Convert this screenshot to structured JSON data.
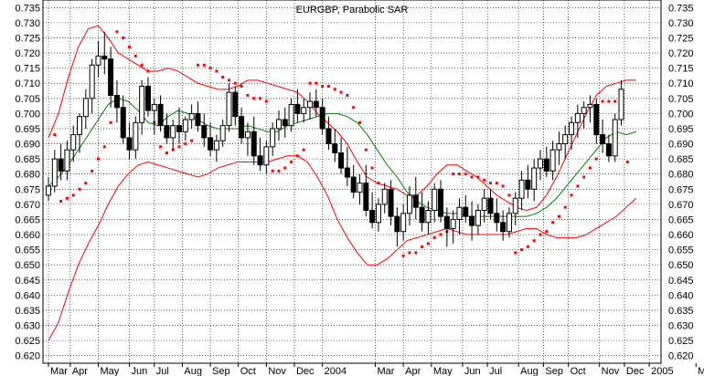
{
  "chart_data": {
    "type": "candlestick",
    "title": "EURGBP, Parabolic SAR",
    "ylim": [
      0.6175,
      0.7375
    ],
    "y_ticks": [
      "0.735",
      "0.730",
      "0.725",
      "0.720",
      "0.715",
      "0.710",
      "0.705",
      "0.700",
      "0.695",
      "0.690",
      "0.685",
      "0.680",
      "0.675",
      "0.670",
      "0.665",
      "0.660",
      "0.655",
      "0.650",
      "0.645",
      "0.640",
      "0.635",
      "0.630",
      "0.625",
      "0.620"
    ],
    "x_ticks": [
      "Mar",
      "Apr",
      "May",
      "Jun",
      "Jul",
      "Aug",
      "Sep",
      "Oct",
      "Nov",
      "Dec",
      "2004",
      "Mar",
      "Apr",
      "May",
      "Jun",
      "Jul",
      "Aug",
      "Sep",
      "Oct",
      "Nov",
      "Dec",
      "2005",
      "Mar"
    ],
    "x_tick_weeks": [
      0,
      3.5,
      8,
      13,
      17,
      21.5,
      26,
      30.5,
      35,
      39.5,
      44,
      52.5,
      57,
      61.5,
      66.5,
      70.5,
      75.5,
      79.5,
      83.5,
      88.5,
      92.5,
      96.5,
      104
    ],
    "grid": true,
    "colors": {
      "up_candle": "#ffffff",
      "down_candle": "#000000",
      "bollinger": "#ff0000",
      "moving_average": "#008000",
      "sar": "#ff0000",
      "grid": "#000000"
    },
    "candles": [
      [
        0.673,
        0.679,
        0.671,
        0.676
      ],
      [
        0.676,
        0.688,
        0.674,
        0.685
      ],
      [
        0.685,
        0.69,
        0.678,
        0.681
      ],
      [
        0.681,
        0.691,
        0.678,
        0.688
      ],
      [
        0.688,
        0.696,
        0.684,
        0.693
      ],
      [
        0.693,
        0.7,
        0.687,
        0.699
      ],
      [
        0.699,
        0.708,
        0.695,
        0.705
      ],
      [
        0.705,
        0.718,
        0.7,
        0.716
      ],
      [
        0.716,
        0.724,
        0.712,
        0.719
      ],
      [
        0.719,
        0.727,
        0.713,
        0.718
      ],
      [
        0.718,
        0.722,
        0.702,
        0.706
      ],
      [
        0.706,
        0.711,
        0.697,
        0.702
      ],
      [
        0.702,
        0.706,
        0.69,
        0.692
      ],
      [
        0.692,
        0.697,
        0.685,
        0.688
      ],
      [
        0.688,
        0.699,
        0.685,
        0.697
      ],
      [
        0.697,
        0.711,
        0.693,
        0.709
      ],
      [
        0.709,
        0.712,
        0.699,
        0.701
      ],
      [
        0.701,
        0.705,
        0.693,
        0.703
      ],
      [
        0.703,
        0.706,
        0.694,
        0.696
      ],
      [
        0.696,
        0.7,
        0.69,
        0.692
      ],
      [
        0.692,
        0.698,
        0.688,
        0.696
      ],
      [
        0.696,
        0.702,
        0.69,
        0.694
      ],
      [
        0.694,
        0.699,
        0.691,
        0.698
      ],
      [
        0.698,
        0.703,
        0.695,
        0.7
      ],
      [
        0.7,
        0.704,
        0.694,
        0.696
      ],
      [
        0.696,
        0.7,
        0.689,
        0.692
      ],
      [
        0.692,
        0.697,
        0.686,
        0.688
      ],
      [
        0.688,
        0.693,
        0.684,
        0.691
      ],
      [
        0.691,
        0.698,
        0.689,
        0.696
      ],
      [
        0.696,
        0.71,
        0.694,
        0.707
      ],
      [
        0.707,
        0.709,
        0.696,
        0.699
      ],
      [
        0.699,
        0.702,
        0.69,
        0.692
      ],
      [
        0.692,
        0.697,
        0.686,
        0.694
      ],
      [
        0.694,
        0.699,
        0.683,
        0.686
      ],
      [
        0.686,
        0.692,
        0.681,
        0.683
      ],
      [
        0.683,
        0.691,
        0.68,
        0.689
      ],
      [
        0.689,
        0.697,
        0.686,
        0.695
      ],
      [
        0.695,
        0.701,
        0.691,
        0.698
      ],
      [
        0.698,
        0.702,
        0.692,
        0.696
      ],
      [
        0.696,
        0.705,
        0.694,
        0.703
      ],
      [
        0.703,
        0.708,
        0.697,
        0.7
      ],
      [
        0.7,
        0.705,
        0.697,
        0.702
      ],
      [
        0.702,
        0.707,
        0.698,
        0.704
      ],
      [
        0.704,
        0.708,
        0.699,
        0.702
      ],
      [
        0.702,
        0.705,
        0.693,
        0.695
      ],
      [
        0.695,
        0.699,
        0.688,
        0.69
      ],
      [
        0.69,
        0.695,
        0.684,
        0.687
      ],
      [
        0.687,
        0.692,
        0.68,
        0.682
      ],
      [
        0.682,
        0.689,
        0.676,
        0.679
      ],
      [
        0.679,
        0.683,
        0.672,
        0.674
      ],
      [
        0.674,
        0.68,
        0.67,
        0.677
      ],
      [
        0.677,
        0.683,
        0.666,
        0.668
      ],
      [
        0.668,
        0.674,
        0.662,
        0.664
      ],
      [
        0.664,
        0.672,
        0.661,
        0.67
      ],
      [
        0.67,
        0.677,
        0.667,
        0.675
      ],
      [
        0.675,
        0.678,
        0.663,
        0.666
      ],
      [
        0.666,
        0.669,
        0.656,
        0.661
      ],
      [
        0.661,
        0.67,
        0.658,
        0.667
      ],
      [
        0.667,
        0.676,
        0.663,
        0.673
      ],
      [
        0.673,
        0.679,
        0.665,
        0.669
      ],
      [
        0.669,
        0.674,
        0.661,
        0.664
      ],
      [
        0.664,
        0.671,
        0.66,
        0.668
      ],
      [
        0.668,
        0.677,
        0.664,
        0.675
      ],
      [
        0.675,
        0.678,
        0.664,
        0.666
      ],
      [
        0.666,
        0.669,
        0.656,
        0.662
      ],
      [
        0.662,
        0.668,
        0.657,
        0.665
      ],
      [
        0.665,
        0.672,
        0.66,
        0.669
      ],
      [
        0.669,
        0.673,
        0.664,
        0.666
      ],
      [
        0.666,
        0.671,
        0.658,
        0.663
      ],
      [
        0.663,
        0.67,
        0.66,
        0.668
      ],
      [
        0.668,
        0.675,
        0.664,
        0.672
      ],
      [
        0.672,
        0.675,
        0.665,
        0.667
      ],
      [
        0.667,
        0.672,
        0.661,
        0.664
      ],
      [
        0.664,
        0.668,
        0.658,
        0.661
      ],
      [
        0.661,
        0.669,
        0.659,
        0.667
      ],
      [
        0.667,
        0.674,
        0.663,
        0.672
      ],
      [
        0.672,
        0.681,
        0.668,
        0.678
      ],
      [
        0.678,
        0.683,
        0.672,
        0.675
      ],
      [
        0.675,
        0.685,
        0.671,
        0.682
      ],
      [
        0.682,
        0.688,
        0.678,
        0.685
      ],
      [
        0.685,
        0.689,
        0.679,
        0.681
      ],
      [
        0.681,
        0.691,
        0.678,
        0.688
      ],
      [
        0.688,
        0.694,
        0.683,
        0.69
      ],
      [
        0.69,
        0.696,
        0.685,
        0.693
      ],
      [
        0.693,
        0.699,
        0.688,
        0.697
      ],
      [
        0.697,
        0.703,
        0.692,
        0.7
      ],
      [
        0.7,
        0.704,
        0.695,
        0.702
      ],
      [
        0.702,
        0.706,
        0.697,
        0.703
      ],
      [
        0.703,
        0.705,
        0.69,
        0.693
      ],
      [
        0.693,
        0.698,
        0.687,
        0.69
      ],
      [
        0.69,
        0.693,
        0.684,
        0.686
      ],
      [
        0.686,
        0.7,
        0.684,
        0.698
      ],
      [
        0.698,
        0.711,
        0.696,
        0.708
      ]
    ],
    "ma": [
      0.676,
      0.679,
      0.683,
      0.688,
      0.693,
      0.698,
      0.703,
      0.705,
      0.704,
      0.701,
      0.697,
      0.696,
      0.699,
      0.701,
      0.7,
      0.698,
      0.696,
      0.695,
      0.695,
      0.695,
      0.696,
      0.695,
      0.694,
      0.694,
      0.696,
      0.697,
      0.698,
      0.699,
      0.7,
      0.7,
      0.699,
      0.697,
      0.693,
      0.688,
      0.683,
      0.679,
      0.674,
      0.671,
      0.669,
      0.668,
      0.667,
      0.667,
      0.666,
      0.666,
      0.666,
      0.666,
      0.666,
      0.666,
      0.666,
      0.667,
      0.669,
      0.672,
      0.676,
      0.68,
      0.684,
      0.688,
      0.692,
      0.694,
      0.693,
      0.694
    ],
    "bb_upper": [
      0.692,
      0.7,
      0.712,
      0.722,
      0.728,
      0.729,
      0.725,
      0.72,
      0.718,
      0.716,
      0.714,
      0.714,
      0.715,
      0.714,
      0.712,
      0.71,
      0.709,
      0.708,
      0.708,
      0.709,
      0.711,
      0.711,
      0.71,
      0.709,
      0.708,
      0.707,
      0.704,
      0.7,
      0.697,
      0.694,
      0.69,
      0.684,
      0.679,
      0.677,
      0.676,
      0.675,
      0.673,
      0.673,
      0.676,
      0.68,
      0.683,
      0.683,
      0.681,
      0.679,
      0.676,
      0.673,
      0.671,
      0.669,
      0.668,
      0.669,
      0.673,
      0.679,
      0.686,
      0.693,
      0.7,
      0.706,
      0.709,
      0.71,
      0.711,
      0.711
    ],
    "bb_lower": [
      0.625,
      0.631,
      0.641,
      0.65,
      0.657,
      0.663,
      0.67,
      0.676,
      0.68,
      0.683,
      0.684,
      0.683,
      0.682,
      0.681,
      0.68,
      0.679,
      0.68,
      0.682,
      0.683,
      0.684,
      0.684,
      0.684,
      0.684,
      0.685,
      0.686,
      0.686,
      0.684,
      0.679,
      0.673,
      0.665,
      0.659,
      0.654,
      0.65,
      0.65,
      0.652,
      0.655,
      0.658,
      0.659,
      0.66,
      0.661,
      0.662,
      0.661,
      0.66,
      0.66,
      0.66,
      0.66,
      0.66,
      0.661,
      0.662,
      0.662,
      0.66,
      0.659,
      0.659,
      0.659,
      0.66,
      0.662,
      0.664,
      0.666,
      0.669,
      0.672
    ],
    "sar": [
      [
        1,
        0.693
      ],
      [
        2,
        0.671
      ],
      [
        3,
        0.672
      ],
      [
        4,
        0.673
      ],
      [
        5,
        0.675
      ],
      [
        6,
        0.677
      ],
      [
        7,
        0.681
      ],
      [
        8,
        0.685
      ],
      [
        9,
        0.689
      ],
      [
        10,
        0.697
      ],
      [
        11,
        0.727
      ],
      [
        12,
        0.725
      ],
      [
        13,
        0.722
      ],
      [
        14,
        0.719
      ],
      [
        15,
        0.716
      ],
      [
        16,
        0.714
      ],
      [
        17,
        0.697
      ],
      [
        18,
        0.689
      ],
      [
        19,
        0.687
      ],
      [
        20,
        0.688
      ],
      [
        21,
        0.689
      ],
      [
        22,
        0.69
      ],
      [
        23,
        0.691
      ],
      [
        24,
        0.716
      ],
      [
        25,
        0.716
      ],
      [
        26,
        0.715
      ],
      [
        27,
        0.714
      ],
      [
        28,
        0.712
      ],
      [
        29,
        0.711
      ],
      [
        30,
        0.71
      ],
      [
        31,
        0.709
      ],
      [
        32,
        0.706
      ],
      [
        33,
        0.705
      ],
      [
        34,
        0.705
      ],
      [
        35,
        0.704
      ],
      [
        36,
        0.681
      ],
      [
        37,
        0.681
      ],
      [
        38,
        0.682
      ],
      [
        39,
        0.684
      ],
      [
        40,
        0.686
      ],
      [
        41,
        0.688
      ],
      [
        42,
        0.71
      ],
      [
        43,
        0.71
      ],
      [
        44,
        0.709
      ],
      [
        45,
        0.709
      ],
      [
        46,
        0.708
      ],
      [
        47,
        0.707
      ],
      [
        48,
        0.706
      ],
      [
        49,
        0.702
      ],
      [
        50,
        0.697
      ],
      [
        51,
        0.688
      ],
      [
        52,
        0.682
      ],
      [
        53,
        0.677
      ],
      [
        54,
        0.672
      ],
      [
        55,
        0.668
      ],
      [
        56,
        0.665
      ],
      [
        57,
        0.653
      ],
      [
        58,
        0.654
      ],
      [
        59,
        0.654
      ],
      [
        60,
        0.656
      ],
      [
        61,
        0.657
      ],
      [
        62,
        0.659
      ],
      [
        63,
        0.66
      ],
      [
        64,
        0.661
      ],
      [
        65,
        0.68
      ],
      [
        66,
        0.68
      ],
      [
        67,
        0.68
      ],
      [
        68,
        0.679
      ],
      [
        69,
        0.679
      ],
      [
        70,
        0.678
      ],
      [
        71,
        0.677
      ],
      [
        72,
        0.677
      ],
      [
        73,
        0.676
      ],
      [
        74,
        0.673
      ],
      [
        75,
        0.654
      ],
      [
        76,
        0.655
      ],
      [
        77,
        0.656
      ],
      [
        78,
        0.658
      ],
      [
        79,
        0.66
      ],
      [
        80,
        0.661
      ],
      [
        81,
        0.664
      ],
      [
        82,
        0.666
      ],
      [
        83,
        0.669
      ],
      [
        84,
        0.673
      ],
      [
        85,
        0.676
      ],
      [
        86,
        0.679
      ],
      [
        87,
        0.682
      ],
      [
        88,
        0.685
      ],
      [
        89,
        0.704
      ],
      [
        90,
        0.704
      ],
      [
        91,
        0.704
      ],
      [
        92,
        0.704
      ],
      [
        93,
        0.684
      ]
    ]
  }
}
